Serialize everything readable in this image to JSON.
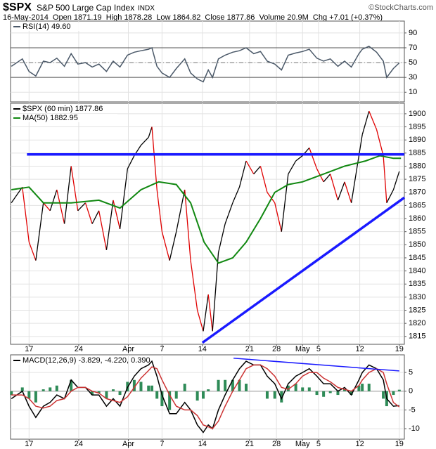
{
  "header": {
    "symbol": "$SPX",
    "name": "S&P 500 Large Cap Index",
    "exchange": "INDX",
    "credit": "©StockCharts.com",
    "quote": "16-May-2014  Open 1871.19  High 1878.28  Low 1864.82  Close 1877.86  Volume 20.9M  Chg +7.01 (+0.37%)"
  },
  "chart_data": [
    {
      "type": "line",
      "x": [
        -2.1,
        -0.8,
        0,
        0.8,
        1.7,
        2.5,
        3.3,
        4.2,
        5,
        5.8,
        6.7,
        7.5,
        8.3,
        9.2,
        10,
        10.8,
        11.7,
        12.5,
        13.3,
        14.2,
        14.6,
        15.2,
        15.8,
        16.7,
        17.5,
        18.5,
        19.2,
        20,
        20.7,
        21.3,
        21.8,
        22.5,
        23.3,
        24.2,
        25,
        25.8,
        26.7,
        27.5,
        28.3,
        29.2,
        30,
        30.8,
        31.7,
        32.5,
        33.3,
        34.2,
        35,
        35.8,
        36.7,
        37.5,
        38.3,
        39.2,
        39.6,
        40.4,
        41.3,
        42.1,
        42.5,
        43.3,
        44
      ],
      "series": [
        {
          "name": "RSI(14) 49.60",
          "color": "#4a5868",
          "values": [
            45,
            55,
            38,
            32,
            52,
            50,
            56,
            45,
            62,
            48,
            50,
            44,
            48,
            38,
            52,
            44,
            60,
            64,
            66,
            68,
            70,
            45,
            36,
            30,
            42,
            55,
            36,
            28,
            24,
            40,
            30,
            55,
            60,
            64,
            66,
            70,
            62,
            65,
            52,
            48,
            40,
            60,
            63,
            65,
            68,
            56,
            52,
            55,
            45,
            52,
            44,
            62,
            68,
            72,
            64,
            52,
            30,
            42,
            49.6
          ]
        }
      ],
      "ylim": [
        -3,
        106
      ],
      "yticks": [
        10,
        30,
        50,
        70,
        90
      ],
      "ref_lines": [
        30,
        70
      ],
      "mid_line": 50,
      "xlim": [
        -2.2,
        44.6
      ],
      "xticks": [
        {
          "value": 0,
          "label": "17"
        },
        {
          "value": 5.9,
          "label": "24"
        },
        {
          "value": 11.8,
          "label": "Apr"
        },
        {
          "value": 15.8,
          "label": "7"
        },
        {
          "value": 20.6,
          "label": "14"
        },
        {
          "value": 26.2,
          "label": "21"
        },
        {
          "value": 29.4,
          "label": "28"
        },
        {
          "value": 32.5,
          "label": "May"
        },
        {
          "value": 34.4,
          "label": "5"
        },
        {
          "value": 39.3,
          "label": "12"
        },
        {
          "value": 44,
          "label": "19"
        }
      ],
      "grid": true
    },
    {
      "type": "line",
      "x": [
        -2.1,
        -0.8,
        0,
        0.8,
        1.7,
        2.5,
        3.3,
        4.2,
        5,
        5.8,
        6.7,
        7.5,
        8.3,
        9.2,
        10,
        10.8,
        11.7,
        12.5,
        13.3,
        14.2,
        14.6,
        15.2,
        15.8,
        16.7,
        17.5,
        18.5,
        19.2,
        20,
        20.7,
        21.3,
        21.8,
        22.5,
        23.3,
        24.2,
        25,
        25.8,
        26.7,
        27.5,
        28.3,
        29.2,
        30,
        30.8,
        31.7,
        32.5,
        33.3,
        34.2,
        35,
        35.8,
        36.7,
        37.5,
        38.3,
        39.2,
        39.6,
        40.4,
        41.3,
        42.1,
        42.5,
        43.3,
        44
      ],
      "series": [
        {
          "name": "$SPX (60 min) 1877.86",
          "color": "#000000",
          "down_color": "#e00000",
          "values": [
            1866,
            1872,
            1851,
            1844,
            1866,
            1863,
            1871,
            1858,
            1880,
            1863,
            1866,
            1858,
            1863,
            1848,
            1867,
            1856,
            1879,
            1884,
            1888,
            1891,
            1895,
            1871,
            1855,
            1844,
            1855,
            1871,
            1844,
            1825,
            1817,
            1831,
            1817,
            1847,
            1858,
            1866,
            1872,
            1882,
            1877,
            1880,
            1870,
            1866,
            1855,
            1877,
            1882,
            1884,
            1887,
            1879,
            1874,
            1877,
            1867,
            1874,
            1866,
            1884,
            1892,
            1901,
            1894,
            1884,
            1866,
            1871,
            1878
          ]
        },
        {
          "name": "MA(50) 1882.95",
          "color": "#118811",
          "x": [
            -2.1,
            0,
            1.7,
            5,
            8.3,
            10.8,
            13.3,
            15.4,
            17.5,
            19.2,
            20.8,
            22.5,
            24.2,
            25.8,
            27.5,
            29.2,
            30.8,
            32.5,
            35,
            37.5,
            40,
            41.7,
            43.3,
            44.2
          ],
          "values": [
            1871,
            1872,
            1866,
            1866,
            1867,
            1864,
            1871,
            1874,
            1873,
            1866,
            1851,
            1843,
            1845,
            1851,
            1860,
            1870,
            1873,
            1874,
            1877,
            1880,
            1882,
            1884,
            1883,
            1883
          ]
        }
      ],
      "trendlines": [
        {
          "color": "#1a1aff",
          "x": [
            -0.25,
            44.6
          ],
          "y": [
            1884.5,
            1884.5
          ]
        },
        {
          "color": "#1a1aff",
          "x": [
            20.6,
            44.6
          ],
          "y": [
            1812.6,
            1868
          ]
        }
      ],
      "ylim": [
        1812,
        1904
      ],
      "yticks": [
        1815,
        1820,
        1825,
        1830,
        1835,
        1840,
        1845,
        1850,
        1855,
        1860,
        1865,
        1870,
        1875,
        1880,
        1885,
        1890,
        1895,
        1900
      ],
      "xlim": [
        -2.2,
        44.6
      ],
      "xticks": [
        {
          "value": 0,
          "label": "17"
        },
        {
          "value": 5.9,
          "label": "24"
        },
        {
          "value": 11.8,
          "label": "Apr"
        },
        {
          "value": 15.8,
          "label": "7"
        },
        {
          "value": 20.6,
          "label": "14"
        },
        {
          "value": 26.2,
          "label": "21"
        },
        {
          "value": 29.4,
          "label": "28"
        },
        {
          "value": 32.5,
          "label": "May"
        },
        {
          "value": 34.4,
          "label": "5"
        },
        {
          "value": 39.3,
          "label": "12"
        },
        {
          "value": 44,
          "label": "19"
        }
      ],
      "grid": true
    },
    {
      "type": "line",
      "x": [
        -2.1,
        -0.8,
        0,
        0.8,
        1.7,
        2.5,
        3.3,
        4.2,
        5,
        5.8,
        6.7,
        7.5,
        8.3,
        9.2,
        10,
        10.8,
        11.7,
        12.5,
        13.3,
        14.2,
        14.6,
        15.2,
        15.8,
        16.7,
        17.5,
        18.5,
        19.2,
        20,
        20.7,
        21.3,
        21.8,
        22.5,
        23.3,
        24.2,
        25,
        25.8,
        26.7,
        27.5,
        28.3,
        29.2,
        30,
        30.8,
        31.7,
        32.5,
        33.3,
        34.2,
        35,
        35.8,
        36.7,
        37.5,
        38.3,
        39.2,
        39.6,
        40.4,
        41.3,
        42.1,
        42.5,
        43.3,
        44
      ],
      "series": [
        {
          "type": "bar",
          "color": "#2e8b57",
          "values": [
            -1,
            1,
            -2,
            -3,
            0.5,
            1,
            1.5,
            0,
            3,
            0,
            0,
            -1,
            -0.5,
            -2,
            0.5,
            -1,
            2.5,
            3,
            2.5,
            1.5,
            1.5,
            -2,
            -4,
            -5,
            -2,
            2,
            0,
            -2.5,
            -2,
            0.5,
            0,
            3,
            3,
            3,
            3,
            2,
            0,
            0,
            -2,
            -2,
            -3,
            1.5,
            2,
            1,
            1,
            -1,
            -1.5,
            -0.5,
            -1,
            0.5,
            -1,
            1.5,
            2,
            2,
            0,
            -2,
            -4,
            -1,
            0.39
          ]
        },
        {
          "name": "MACD(12,26,9) -3.829, -4.220, 0.390",
          "color": "#000000",
          "values": [
            -2,
            0,
            -4,
            -7,
            -4,
            -3,
            -1,
            -2,
            3,
            1,
            1,
            -1,
            -1,
            -4,
            -2,
            -4,
            1,
            4,
            6,
            7,
            8,
            4,
            -1,
            -6,
            -6,
            -3,
            -5,
            -9,
            -11,
            -9,
            -10,
            -5,
            -1,
            3,
            6,
            8,
            7,
            7,
            4,
            2,
            -2,
            2,
            4,
            5,
            6,
            4,
            2,
            2,
            0,
            1,
            -1,
            3,
            5,
            7,
            6,
            3,
            -2,
            -4,
            -3.829
          ]
        },
        {
          "color": "#cc3333",
          "values": [
            -1,
            -1,
            -2,
            -4,
            -4.5,
            -4,
            -2.5,
            -2,
            0,
            1,
            1,
            0,
            -0.5,
            -2,
            -2.5,
            -3,
            -1.5,
            1,
            3.5,
            5.5,
            6.5,
            6,
            3,
            -1,
            -4,
            -5,
            -5,
            -6.5,
            -9,
            -9.5,
            -10,
            -8,
            -4,
            0,
            3,
            6,
            7,
            7,
            6,
            4,
            1,
            0.5,
            2,
            4,
            5,
            5,
            3.5,
            2.5,
            1,
            0.5,
            0,
            1.5,
            3,
            5,
            6,
            5,
            2,
            -3,
            -4.22
          ]
        }
      ],
      "trendlines": [
        {
          "color": "#1a1aff",
          "x": [
            24.3,
            44
          ],
          "y": [
            8.8,
            5.4
          ]
        }
      ],
      "ylim": [
        -12.8,
        9.7
      ],
      "yticks": [
        -10,
        -5,
        0,
        5
      ],
      "xlim": [
        -2.2,
        44.6
      ],
      "xticks": [
        {
          "value": 0,
          "label": "17"
        },
        {
          "value": 5.9,
          "label": "24"
        },
        {
          "value": 11.8,
          "label": "Apr"
        },
        {
          "value": 15.8,
          "label": "7"
        },
        {
          "value": 20.6,
          "label": "14"
        },
        {
          "value": 26.2,
          "label": "21"
        },
        {
          "value": 29.4,
          "label": "28"
        },
        {
          "value": 32.5,
          "label": "May"
        },
        {
          "value": 34.4,
          "label": "5"
        },
        {
          "value": 39.3,
          "label": "12"
        },
        {
          "value": 44,
          "label": "19"
        }
      ],
      "grid": true
    }
  ]
}
